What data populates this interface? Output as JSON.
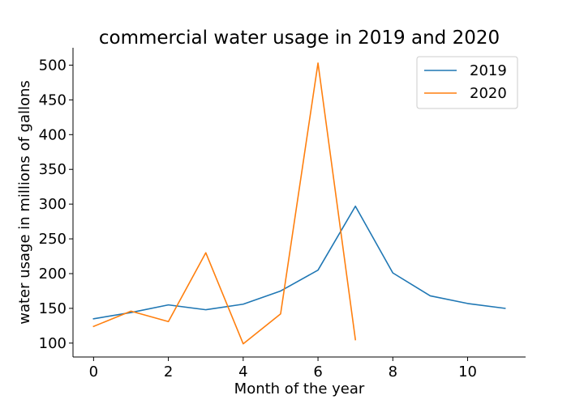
{
  "chart_data": {
    "type": "line",
    "title": "commercial water usage in 2019 and 2020",
    "xlabel": "Month of the year",
    "ylabel": "water usage in millions of gallons",
    "xlim": [
      -0.55,
      11.55
    ],
    "ylim": [
      80,
      525
    ],
    "xticks": [
      0,
      2,
      4,
      6,
      8,
      10
    ],
    "yticks": [
      100,
      150,
      200,
      250,
      300,
      350,
      400,
      450,
      500
    ],
    "grid": false,
    "legend_position": "top-right",
    "series": [
      {
        "name": "2019",
        "color": "#1f77b4",
        "x": [
          0,
          1,
          2,
          3,
          4,
          5,
          6,
          7,
          8,
          9,
          10,
          11
        ],
        "values": [
          135,
          144,
          155,
          148,
          156,
          175,
          205,
          297,
          201,
          168,
          157,
          150
        ]
      },
      {
        "name": "2020",
        "color": "#ff7f0e",
        "x": [
          0,
          1,
          2,
          3,
          4,
          5,
          6,
          7
        ],
        "values": [
          124,
          146,
          131,
          230,
          99,
          142,
          503,
          105
        ]
      }
    ]
  }
}
